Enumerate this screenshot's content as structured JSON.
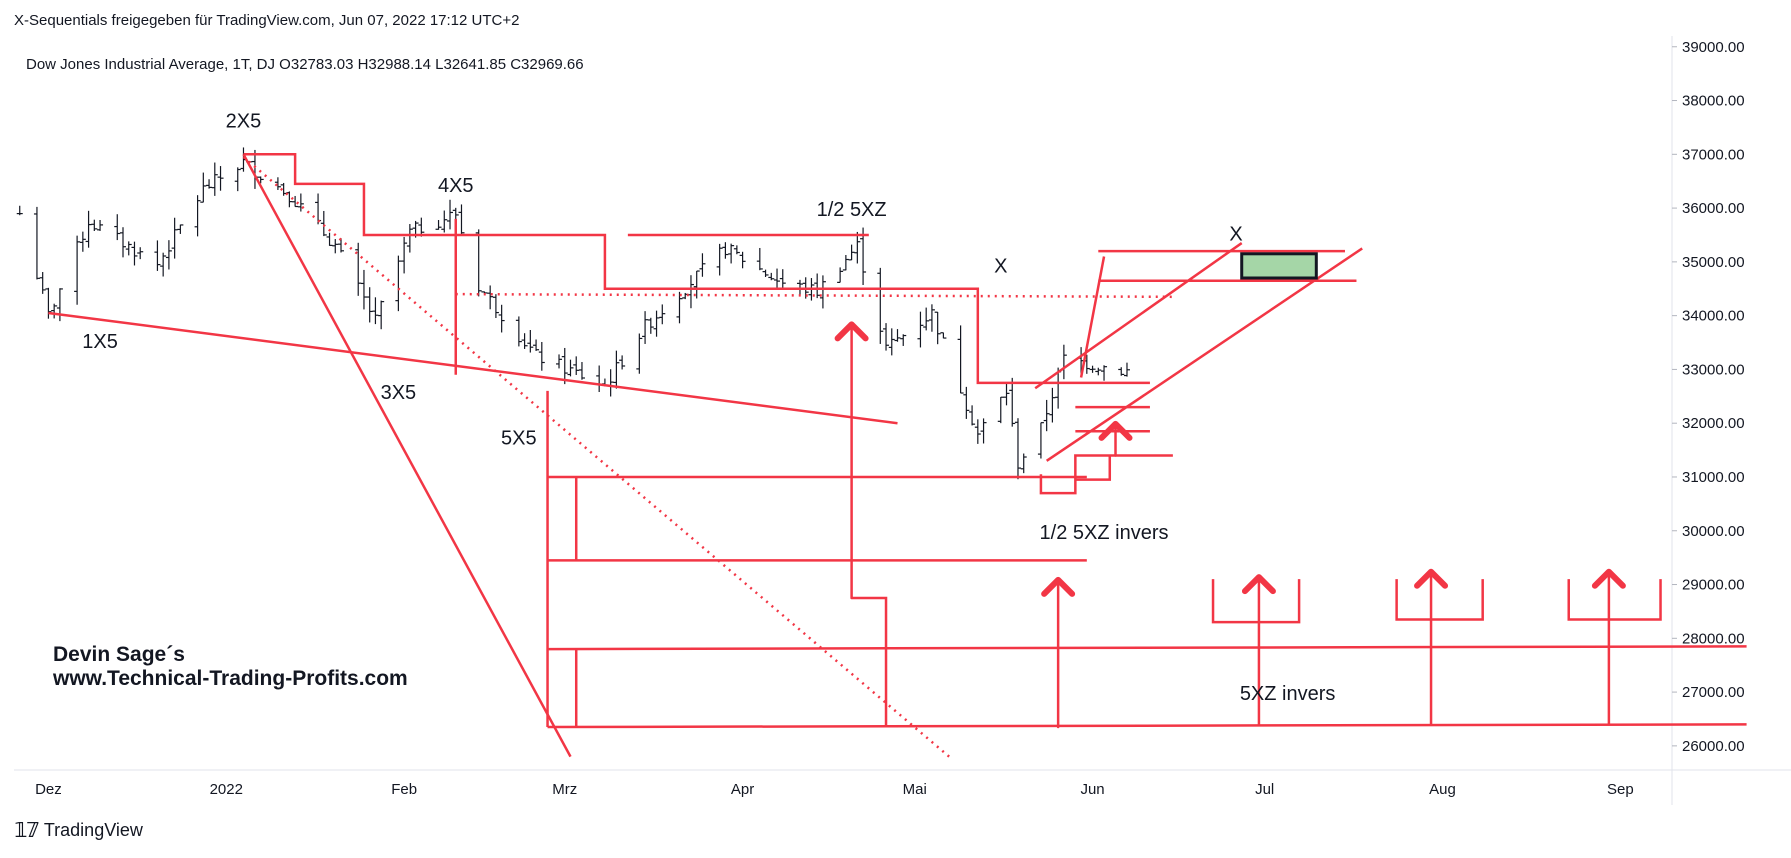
{
  "header": {
    "attribution": "X-Sequentials freigegeben für TradingView.com, Jun 07, 2022 17:12 UTC+2"
  },
  "footer": {
    "brand": "TradingView",
    "logo": "tradingview-logo-icon"
  },
  "colors": {
    "drawing": "#f23645",
    "fill": "#a5d6a7",
    "bar": "#131722",
    "axis": "#e0e3eb"
  },
  "chart_data": {
    "type": "ohlc",
    "legend": "Dow Jones Industrial Average, 1T, DJ  O32783.03  H32988.14  L32641.85  C32969.66",
    "ylim": [
      25700,
      39200
    ],
    "y_ticks": [
      "39000.00",
      "38000.00",
      "37000.00",
      "36000.00",
      "35000.00",
      "34000.00",
      "33000.00",
      "32000.00",
      "31000.00",
      "30000.00",
      "29000.00",
      "28000.00",
      "27000.00",
      "26000.00"
    ],
    "x_ticks": [
      "Dez",
      "2022",
      "Feb",
      "Mrz",
      "Apr",
      "Mai",
      "Jun",
      "Jul",
      "Aug",
      "Sep"
    ],
    "x_tick_dates": [
      "2021-12-01",
      "2022-01-01",
      "2022-02-01",
      "2022-03-01",
      "2022-04-01",
      "2022-05-01",
      "2022-06-01",
      "2022-07-01",
      "2022-08-01",
      "2022-09-01"
    ],
    "date_range": [
      "2021-11-25",
      "2022-09-10"
    ],
    "series": [
      {
        "key": "price",
        "anchors": [
          [
            "2021-11-26",
            35900
          ],
          [
            "2021-12-01",
            34000
          ],
          [
            "2021-12-08",
            35750
          ],
          [
            "2021-12-20",
            34950
          ],
          [
            "2021-12-28",
            36350
          ],
          [
            "2022-01-04",
            36850
          ],
          [
            "2022-01-12",
            36250
          ],
          [
            "2022-01-20",
            35300
          ],
          [
            "2022-01-27",
            33900
          ],
          [
            "2022-02-02",
            35550
          ],
          [
            "2022-02-10",
            35900
          ],
          [
            "2022-02-14",
            34550
          ],
          [
            "2022-02-24",
            33250
          ],
          [
            "2022-03-08",
            32700
          ],
          [
            "2022-03-15",
            33800
          ],
          [
            "2022-03-29",
            35250
          ],
          [
            "2022-04-08",
            34600
          ],
          [
            "2022-04-14",
            34450
          ],
          [
            "2022-04-21",
            35300
          ],
          [
            "2022-04-26",
            33400
          ],
          [
            "2022-05-04",
            34050
          ],
          [
            "2022-05-12",
            31800
          ],
          [
            "2022-05-17",
            32600
          ],
          [
            "2022-05-19",
            31250
          ],
          [
            "2022-05-23",
            31900
          ],
          [
            "2022-05-27",
            33200
          ],
          [
            "2022-06-07",
            32970
          ]
        ]
      }
    ],
    "annotations": [
      "1X5",
      "2X5",
      "3X5",
      "4X5",
      "5X5",
      "1/2 5XZ",
      "X",
      "X",
      "1/2 5XZ invers",
      "5XZ invers"
    ],
    "credit": [
      "Devin Sage´s",
      "www.Technical-Trading-Profits.com"
    ],
    "drawings": {
      "lines": [
        {
          "style": "solid",
          "points": [
            [
              "2021-12-01",
              34050
            ],
            [
              "2022-04-28",
              32000
            ]
          ]
        },
        {
          "style": "solid",
          "points": [
            [
              "2022-01-04",
              37000
            ],
            [
              "2022-03-02",
              25800
            ]
          ]
        },
        {
          "style": "dotted",
          "points": [
            [
              "2022-01-04",
              36950
            ],
            [
              "2022-05-07",
              25800
            ]
          ]
        },
        {
          "style": "dotted",
          "points": [
            [
              "2022-02-10",
              34400
            ],
            [
              "2022-06-15",
              34350
            ]
          ]
        },
        {
          "style": "solid",
          "points": [
            [
              "2022-05-22",
              32650
            ],
            [
              "2022-06-27",
              35350
            ]
          ]
        },
        {
          "style": "solid",
          "points": [
            [
              "2022-05-24",
              31300
            ],
            [
              "2022-07-18",
              35250
            ]
          ]
        },
        {
          "style": "solid",
          "points": [
            [
              "2022-05-30",
              32850
            ],
            [
              "2022-06-03",
              35100
            ]
          ]
        }
      ],
      "polylines": [
        [
          [
            "2022-01-04",
            37000
          ],
          [
            "2022-01-13",
            37000
          ],
          [
            "2022-01-13",
            36450
          ],
          [
            "2022-01-25",
            36450
          ],
          [
            "2022-01-25",
            35500
          ],
          [
            "2022-03-08",
            35500
          ],
          [
            "2022-03-08",
            34500
          ],
          [
            "2022-05-12",
            34500
          ],
          [
            "2022-05-12",
            32750
          ],
          [
            "2022-06-11",
            32750
          ]
        ],
        [
          [
            "2022-02-10",
            35800
          ],
          [
            "2022-02-10",
            32900
          ]
        ],
        [
          [
            "2022-03-12",
            35500
          ],
          [
            "2022-04-23",
            35500
          ]
        ],
        [
          [
            "2022-02-26",
            31000
          ],
          [
            "2022-05-31",
            31000
          ]
        ],
        [
          [
            "2022-02-26",
            29450
          ],
          [
            "2022-05-31",
            29450
          ]
        ],
        [
          [
            "2022-02-26",
            32600
          ],
          [
            "2022-02-26",
            26350
          ]
        ],
        [
          [
            "2022-03-03",
            31000
          ],
          [
            "2022-03-03",
            29450
          ]
        ],
        [
          [
            "2022-02-26",
            27800
          ],
          [
            "2022-09-23",
            27850
          ]
        ],
        [
          [
            "2022-02-26",
            26350
          ],
          [
            "2022-09-23",
            26400
          ]
        ],
        [
          [
            "2022-03-03",
            27800
          ],
          [
            "2022-03-03",
            26350
          ]
        ],
        [
          [
            "2022-04-20",
            28750
          ],
          [
            "2022-04-26",
            28750
          ],
          [
            "2022-04-26",
            26350
          ]
        ],
        [
          [
            "2022-05-23",
            31050
          ],
          [
            "2022-05-23",
            30700
          ],
          [
            "2022-05-29",
            30700
          ],
          [
            "2022-05-29",
            31400
          ],
          [
            "2022-06-15",
            31400
          ]
        ],
        [
          [
            "2022-05-29",
            32300
          ],
          [
            "2022-06-11",
            32300
          ]
        ],
        [
          [
            "2022-05-29",
            31850
          ],
          [
            "2022-06-11",
            31850
          ]
        ],
        [
          [
            "2022-05-29",
            30950
          ],
          [
            "2022-06-04",
            30950
          ],
          [
            "2022-06-04",
            31400
          ]
        ],
        [
          [
            "2022-06-02",
            35200
          ],
          [
            "2022-07-15",
            35200
          ]
        ],
        [
          [
            "2022-06-02",
            34650
          ],
          [
            "2022-07-17",
            34650
          ]
        ],
        [
          [
            "2022-06-22",
            29100
          ],
          [
            "2022-06-22",
            28300
          ],
          [
            "2022-07-07",
            28300
          ],
          [
            "2022-07-07",
            29100
          ]
        ],
        [
          [
            "2022-07-24",
            29100
          ],
          [
            "2022-07-24",
            28350
          ],
          [
            "2022-08-08",
            28350
          ],
          [
            "2022-08-08",
            29100
          ]
        ],
        [
          [
            "2022-08-23",
            29100
          ],
          [
            "2022-08-23",
            28350
          ],
          [
            "2022-09-08",
            28350
          ],
          [
            "2022-09-08",
            29100
          ]
        ]
      ],
      "arrows": [
        {
          "date": "2022-04-20",
          "from": 28750,
          "to": 33800
        },
        {
          "date": "2022-05-26",
          "from": 26350,
          "to": 29050
        },
        {
          "date": "2022-06-30",
          "from": 26400,
          "to": 29100
        },
        {
          "date": "2022-07-30",
          "from": 26400,
          "to": 29200
        },
        {
          "date": "2022-08-30",
          "from": 26400,
          "to": 29200
        },
        {
          "date": "2022-06-05",
          "from": 31400,
          "to": 31950
        }
      ],
      "box": {
        "from": [
          "2022-06-27",
          35150
        ],
        "to": [
          "2022-07-10",
          34700
        ]
      }
    }
  }
}
